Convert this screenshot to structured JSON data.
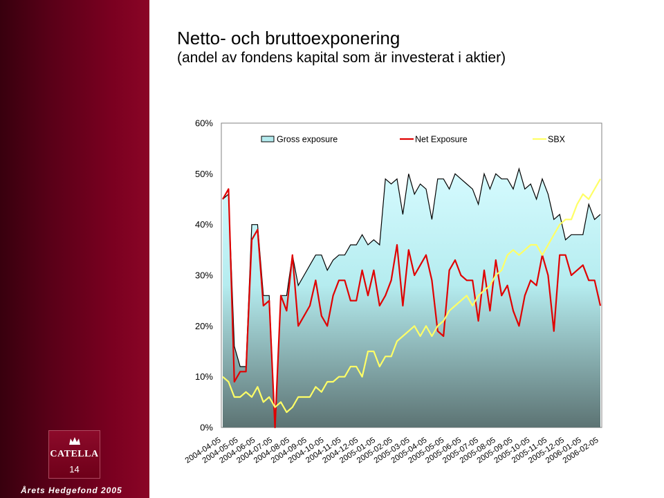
{
  "slide": {
    "title_line1": "Netto- och bruttoexponering",
    "title_line2": "(andel av fondens kapital som är investerat i aktier)",
    "logo_text": "CATELLA",
    "page_number": "14",
    "footer": "Årets Hedgefond 2005",
    "brand_color": "#7a0020"
  },
  "chart_data": {
    "type": "area",
    "title": "",
    "ylim": [
      0,
      60
    ],
    "yticks": [
      "0%",
      "10%",
      "20%",
      "30%",
      "40%",
      "50%",
      "60%"
    ],
    "xticks": [
      "2004-04-05",
      "2004-05-05",
      "2004-06-05",
      "2004-07-05",
      "2004-08-05",
      "2004-09-05",
      "2004-10-05",
      "2004-11-05",
      "2004-12-05",
      "2005-01-05",
      "2005-02-05",
      "2005-03-05",
      "2005-04-05",
      "2005-05-05",
      "2005-06-05",
      "2005-07-05",
      "2005-08-05",
      "2005-09-05",
      "2005-10-05",
      "2005-11-05",
      "2005-12-05",
      "2006-01-05",
      "2006-02-05"
    ],
    "legend_position": "top",
    "series": [
      {
        "name": "Gross exposure",
        "kind": "area",
        "color": "#000000",
        "values": [
          45,
          46,
          16,
          12,
          12,
          40,
          40,
          26,
          26,
          0,
          26,
          26,
          34,
          28,
          30,
          32,
          34,
          34,
          31,
          33,
          34,
          34,
          36,
          36,
          38,
          36,
          37,
          36,
          49,
          48,
          49,
          42,
          50,
          46,
          48,
          47,
          41,
          49,
          49,
          47,
          50,
          49,
          48,
          47,
          44,
          50,
          47,
          50,
          49,
          49,
          47,
          51,
          47,
          48,
          45,
          49,
          46,
          41,
          42,
          37,
          38,
          38,
          38,
          44,
          41,
          42
        ]
      },
      {
        "name": "Net Exposure",
        "kind": "line",
        "color": "#e00000",
        "values": [
          45,
          47,
          9,
          11,
          11,
          37,
          39,
          24,
          25,
          0,
          26,
          23,
          34,
          20,
          22,
          24,
          29,
          22,
          20,
          26,
          29,
          29,
          25,
          25,
          31,
          26,
          31,
          24,
          26,
          29,
          36,
          24,
          35,
          30,
          32,
          34,
          29,
          19,
          18,
          31,
          33,
          30,
          29,
          29,
          21,
          31,
          23,
          33,
          26,
          28,
          23,
          20,
          26,
          29,
          28,
          34,
          30,
          19,
          34,
          34,
          30,
          31,
          32,
          29,
          29,
          24
        ]
      },
      {
        "name": "SBX",
        "kind": "line",
        "color": "#ffff66",
        "values": [
          10,
          9,
          6,
          6,
          7,
          6,
          8,
          5,
          6,
          4,
          5,
          3,
          4,
          6,
          6,
          6,
          8,
          7,
          9,
          9,
          10,
          10,
          12,
          12,
          10,
          15,
          15,
          12,
          14,
          14,
          17,
          18,
          19,
          20,
          18,
          20,
          18,
          20,
          21,
          23,
          24,
          25,
          26,
          24,
          26,
          27,
          28,
          30,
          31,
          34,
          35,
          34,
          35,
          36,
          36,
          34,
          36,
          38,
          40,
          41,
          41,
          44,
          46,
          45,
          47,
          49
        ]
      }
    ]
  }
}
